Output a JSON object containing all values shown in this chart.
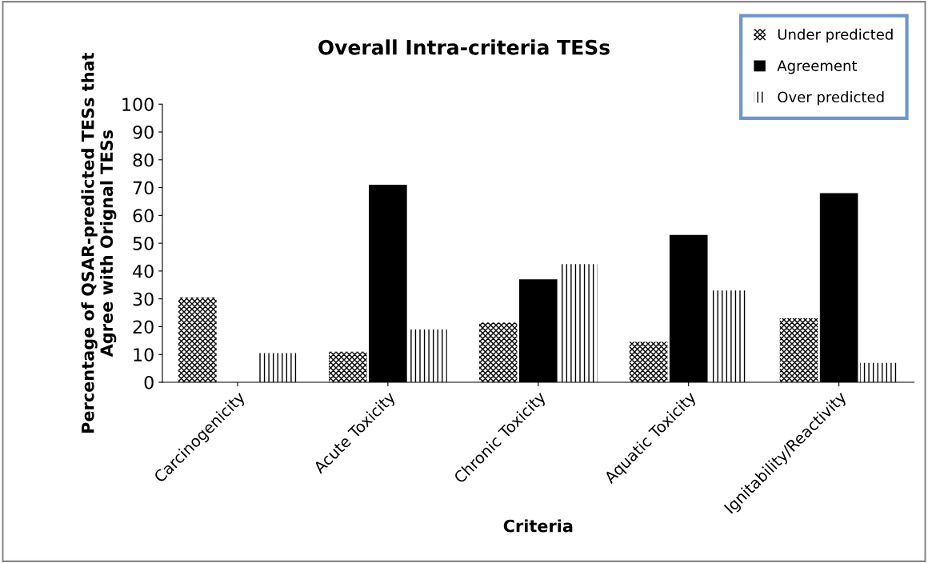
{
  "chart_data": {
    "type": "bar",
    "title": "Overall Intra-criteria TESs",
    "xlabel": "Criteria",
    "ylabel": "Percentage of QSAR-predicted TESs that\nAgree with Orignal TESs",
    "categories": [
      "Carcinogenicity",
      "Acute Toxicity",
      "Chronic Toxicity",
      "Aquatic Toxicity",
      "Ignitability/Reactivity"
    ],
    "series": [
      {
        "name": "Under predicted",
        "color": "#000000",
        "values": [
          30.5,
          11,
          21.5,
          14.5,
          23
        ]
      },
      {
        "name": "Agreement",
        "color": "#000000",
        "values": [
          0,
          71,
          37,
          53,
          68
        ]
      },
      {
        "name": "Over predicted",
        "color": "#000000",
        "values": [
          10.5,
          19,
          42.5,
          33,
          7
        ]
      }
    ],
    "ylim": [
      0,
      100
    ],
    "yticks": [
      0,
      10,
      20,
      30,
      40,
      50,
      60,
      70,
      80,
      90,
      100
    ],
    "grid": false,
    "legend": "top right"
  }
}
